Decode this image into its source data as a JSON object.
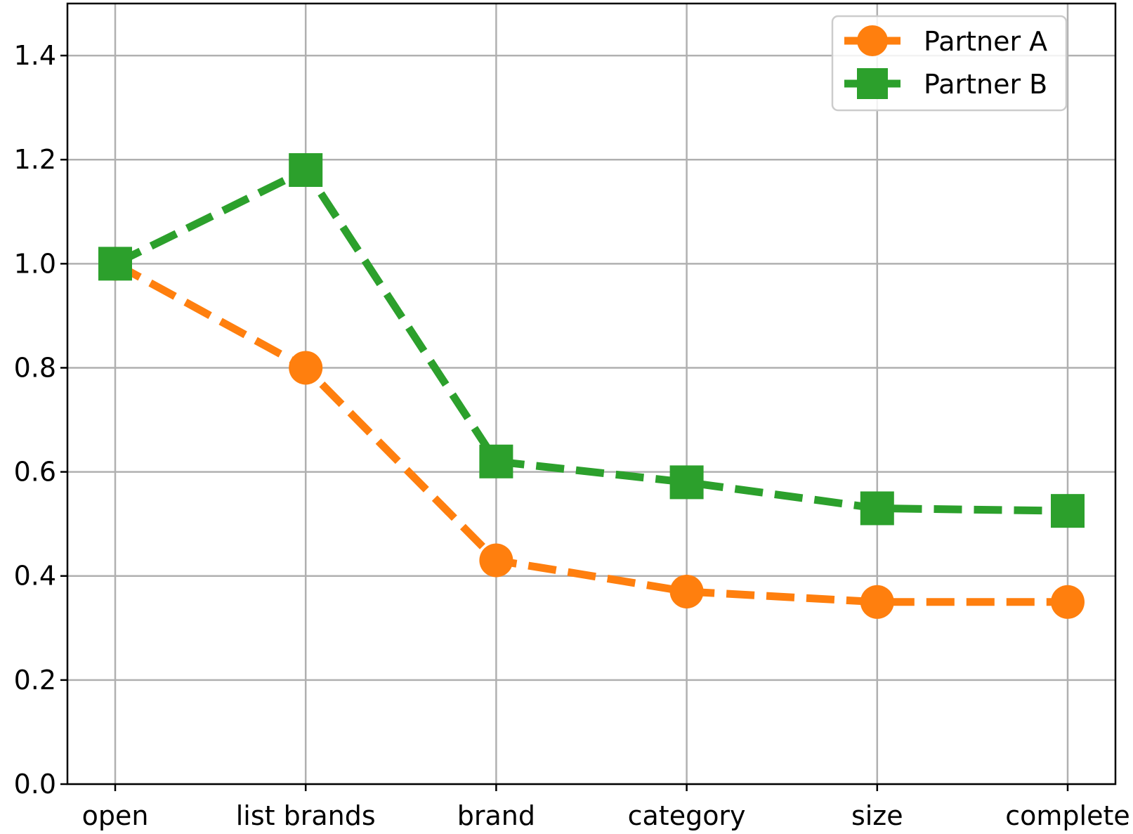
{
  "chart_data": {
    "type": "line",
    "title": "",
    "xlabel": "",
    "ylabel": "",
    "categories": [
      "open",
      "list brands",
      "brand",
      "category",
      "size",
      "complete"
    ],
    "ylim": [
      0.0,
      1.5
    ],
    "yticks": [
      "0.0",
      "0.2",
      "0.4",
      "0.6",
      "0.8",
      "1.0",
      "1.2",
      "1.4"
    ],
    "grid": true,
    "legend_position": "top-right",
    "series": [
      {
        "name": "Partner A",
        "values": [
          1.0,
          0.8,
          0.43,
          0.37,
          0.35,
          0.35
        ],
        "color": "#ff7f0e",
        "marker": "circle",
        "line_style": "dashed"
      },
      {
        "name": "Partner B",
        "values": [
          1.0,
          1.18,
          0.62,
          0.58,
          0.53,
          0.525
        ],
        "color": "#2ca02c",
        "marker": "square",
        "line_style": "dashed"
      }
    ]
  }
}
